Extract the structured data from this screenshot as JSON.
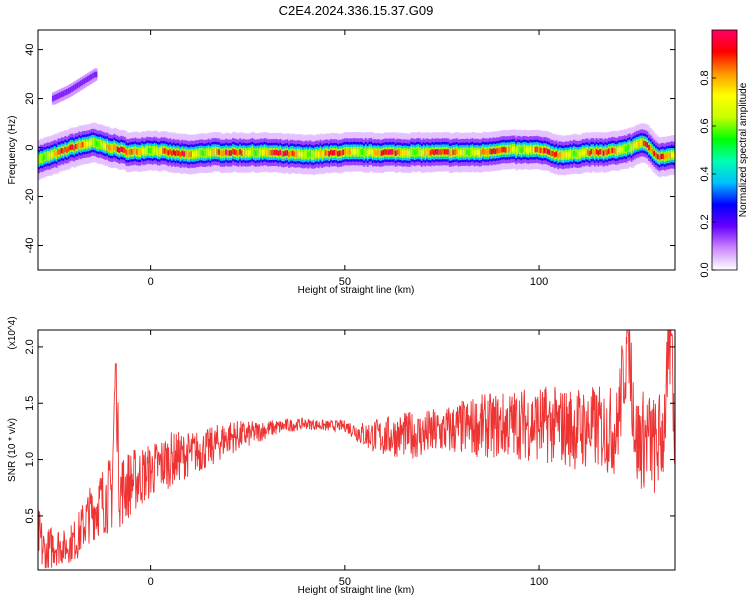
{
  "title": "C2E4.2024.336.15.37.G09",
  "chart_data": [
    {
      "type": "heatmap",
      "xlabel": "Height of straight line (km)",
      "ylabel": "Frequency (Hz)",
      "xlim": [
        -29,
        135
      ],
      "ylim": [
        -50,
        48
      ],
      "xticks": [
        0,
        50,
        100
      ],
      "yticks": [
        -40,
        -20,
        0,
        20,
        40
      ],
      "grid": false,
      "colorbar": {
        "label": "Normalized spectral amplitude",
        "range": [
          0,
          1
        ],
        "ticks": [
          "0.0",
          "0.2",
          "0.4",
          "0.6",
          "0.8"
        ],
        "colors": [
          "#ffffff",
          "#cc88ff",
          "#6600ff",
          "#0000ff",
          "#00c0ff",
          "#00ffb0",
          "#00ff00",
          "#c8ff00",
          "#ffff00",
          "#ff9900",
          "#ff0000",
          "#ff0066"
        ]
      },
      "ridge": {
        "x": [
          -29,
          -25,
          -20,
          -15,
          -10,
          -5,
          0,
          5,
          10,
          15,
          20,
          25,
          30,
          40,
          50,
          53,
          57,
          60,
          65,
          70,
          75,
          80,
          85,
          90,
          95,
          100,
          103,
          105,
          108,
          112,
          117,
          121,
          124,
          126,
          128,
          131,
          135
        ],
        "y": [
          -5,
          -3,
          0,
          2,
          0,
          -2,
          -1,
          -2,
          -3,
          -2,
          -2,
          -2,
          -2,
          -3,
          -2,
          -2,
          -2,
          -2,
          -2,
          -2,
          -2,
          -2,
          -2,
          -1,
          -1,
          -1,
          -2,
          -3,
          -3,
          -2,
          -2,
          -1,
          0,
          2,
          1,
          -4,
          -3
        ]
      },
      "side_branch": {
        "x": [
          -25,
          -21,
          -17,
          -14
        ],
        "y": [
          20,
          23,
          27,
          30
        ]
      }
    },
    {
      "type": "line",
      "xlabel": "Height of straight line (km)",
      "ylabel": "SNR (10 * v/v)",
      "scale_label": "(x10^4)",
      "xlim": [
        -29,
        135
      ],
      "ylim": [
        0.02,
        2.15
      ],
      "xticks": [
        0,
        50,
        100
      ],
      "yticks": [
        0.5,
        1.0,
        1.5,
        2.0
      ],
      "ytick_labels": [
        "0.5",
        "1.0",
        "1.5",
        "2.0"
      ],
      "grid": false,
      "series": [
        {
          "color": "#ee3333",
          "x": [
            -29,
            -27,
            -25,
            -22,
            -19,
            -16,
            -13,
            -10,
            -9,
            -8,
            -5,
            0,
            5,
            10,
            15,
            20,
            25,
            30,
            35,
            40,
            45,
            50,
            55,
            60,
            65,
            70,
            75,
            80,
            85,
            90,
            95,
            100,
            105,
            110,
            115,
            120,
            123,
            125,
            128,
            130,
            132,
            134,
            135
          ],
          "y": [
            0.35,
            0.12,
            0.25,
            0.22,
            0.3,
            0.5,
            0.62,
            0.7,
            1.85,
            0.72,
            0.8,
            0.9,
            1.0,
            1.05,
            1.1,
            1.2,
            1.22,
            1.27,
            1.3,
            1.32,
            1.3,
            1.3,
            1.22,
            1.2,
            1.22,
            1.22,
            1.25,
            1.28,
            1.3,
            1.3,
            1.32,
            1.32,
            1.3,
            1.28,
            1.28,
            1.25,
            2.12,
            1.15,
            1.2,
            1.1,
            1.25,
            2.1,
            1.2
          ],
          "noise": [
            0.25,
            0.25,
            0.2,
            0.15,
            0.2,
            0.25,
            0.3,
            0.35,
            0.4,
            0.35,
            0.3,
            0.25,
            0.25,
            0.2,
            0.18,
            0.16,
            0.12,
            0.08,
            0.06,
            0.05,
            0.05,
            0.05,
            0.12,
            0.18,
            0.2,
            0.22,
            0.22,
            0.25,
            0.28,
            0.3,
            0.32,
            0.35,
            0.35,
            0.38,
            0.38,
            0.4,
            0.45,
            0.45,
            0.45,
            0.45,
            0.45,
            0.45,
            0.45
          ]
        }
      ]
    }
  ]
}
